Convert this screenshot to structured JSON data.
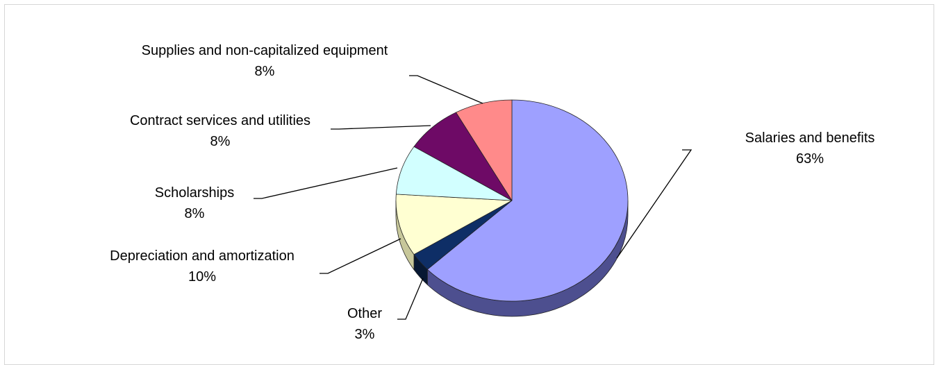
{
  "chart_data": {
    "type": "pie",
    "slices": [
      {
        "name": "Salaries and benefits",
        "label": "63%",
        "value": 63,
        "color": "#9EA0FF",
        "side": "#4D4F8F"
      },
      {
        "name": "Other",
        "label": "3%",
        "value": 3,
        "color": "#0E2E66",
        "side": "#071833"
      },
      {
        "name": "Depreciation and amortization",
        "label": "10%",
        "value": 10,
        "color": "#FFFFD2",
        "side": "#C7C79A"
      },
      {
        "name": "Scholarships",
        "label": "8%",
        "value": 8,
        "color": "#D2FFFF",
        "side": "#9CC7C7"
      },
      {
        "name": "Contract services and utilities",
        "label": "8%",
        "value": 8,
        "color": "#6E0A66",
        "side": "#3C0538"
      },
      {
        "name": "Supplies and non-capitalized equipment",
        "label": "8%",
        "value": 8,
        "color": "#FF8A8A",
        "side": "#B05C5C"
      }
    ]
  }
}
